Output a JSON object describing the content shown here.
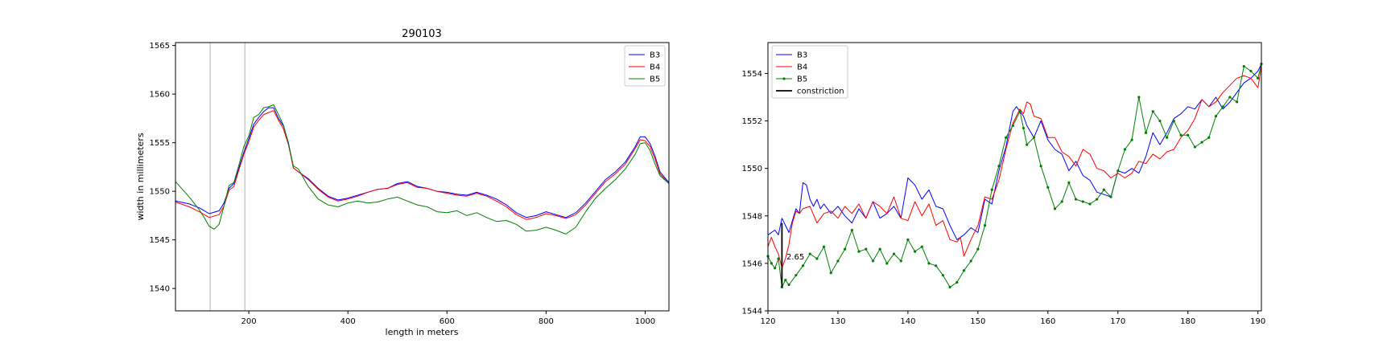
{
  "colors": {
    "B3": "#0000ff",
    "B4": "#ff0000",
    "B5": "#008000",
    "constriction": "#000000",
    "vline": "#b0b0b0"
  },
  "chart_data": [
    {
      "type": "line",
      "title": "290103",
      "xlabel": "length in meters",
      "ylabel": "width in millimeters",
      "xlim": [
        52,
        1048
      ],
      "ylim": [
        1537.7,
        1565.3
      ],
      "xticks": [
        "200",
        "400",
        "600",
        "800",
        "1000"
      ],
      "yticks": [
        "1540",
        "1545",
        "1550",
        "1555",
        "1560",
        "1565"
      ],
      "grid": false,
      "legend": "top-right",
      "vertical_lines_x": [
        122,
        192
      ],
      "series": [
        {
          "name": "B3",
          "x": [
            52,
            80,
            100,
            120,
            140,
            150,
            160,
            170,
            180,
            190,
            200,
            210,
            220,
            230,
            240,
            250,
            260,
            270,
            280,
            290,
            300,
            320,
            340,
            360,
            380,
            400,
            420,
            440,
            460,
            480,
            500,
            520,
            540,
            560,
            580,
            600,
            620,
            640,
            660,
            680,
            700,
            720,
            740,
            760,
            780,
            800,
            820,
            840,
            860,
            880,
            900,
            920,
            940,
            960,
            980,
            990,
            1000,
            1010,
            1020,
            1030,
            1048
          ],
          "y": [
            1549.0,
            1548.7,
            1548.3,
            1547.7,
            1548.0,
            1548.8,
            1550.3,
            1550.8,
            1552.4,
            1554.0,
            1555.4,
            1556.9,
            1557.6,
            1558.2,
            1558.6,
            1558.6,
            1557.5,
            1556.7,
            1555.0,
            1552.4,
            1552.0,
            1551.3,
            1550.3,
            1549.5,
            1549.1,
            1549.3,
            1549.6,
            1549.9,
            1550.2,
            1550.3,
            1550.8,
            1551.0,
            1550.5,
            1550.3,
            1550.0,
            1549.9,
            1549.7,
            1549.6,
            1549.9,
            1549.6,
            1549.2,
            1548.6,
            1547.8,
            1547.3,
            1547.5,
            1547.9,
            1547.6,
            1547.3,
            1547.8,
            1548.8,
            1550.0,
            1551.2,
            1552.0,
            1553.0,
            1554.6,
            1555.6,
            1555.6,
            1554.9,
            1553.6,
            1552.0,
            1550.9
          ]
        },
        {
          "name": "B4",
          "x": [
            52,
            80,
            100,
            120,
            140,
            150,
            160,
            170,
            180,
            190,
            200,
            210,
            220,
            230,
            240,
            250,
            260,
            270,
            280,
            290,
            300,
            320,
            340,
            360,
            380,
            400,
            420,
            440,
            460,
            480,
            500,
            520,
            540,
            560,
            580,
            600,
            620,
            640,
            660,
            680,
            700,
            720,
            740,
            760,
            780,
            800,
            820,
            840,
            860,
            880,
            900,
            920,
            940,
            960,
            980,
            990,
            1000,
            1010,
            1020,
            1030,
            1048
          ],
          "y": [
            1548.9,
            1548.4,
            1547.9,
            1547.3,
            1547.6,
            1548.5,
            1550.1,
            1550.5,
            1552.2,
            1553.8,
            1555.1,
            1556.6,
            1557.3,
            1557.9,
            1558.1,
            1558.3,
            1557.3,
            1556.4,
            1554.8,
            1552.4,
            1552.0,
            1551.2,
            1550.2,
            1549.4,
            1549.0,
            1549.2,
            1549.5,
            1549.9,
            1550.2,
            1550.3,
            1550.7,
            1550.9,
            1550.4,
            1550.3,
            1550.0,
            1549.8,
            1549.6,
            1549.5,
            1549.8,
            1549.5,
            1549.0,
            1548.4,
            1547.6,
            1547.1,
            1547.3,
            1547.7,
            1547.5,
            1547.2,
            1547.6,
            1548.6,
            1549.8,
            1551.0,
            1551.8,
            1552.8,
            1554.4,
            1555.3,
            1555.2,
            1554.6,
            1553.3,
            1551.8,
            1550.8
          ]
        },
        {
          "name": "B5",
          "x": [
            52,
            80,
            100,
            110,
            120,
            130,
            140,
            150,
            160,
            170,
            180,
            190,
            200,
            210,
            220,
            230,
            240,
            250,
            260,
            270,
            280,
            290,
            300,
            320,
            340,
            360,
            380,
            400,
            420,
            440,
            460,
            480,
            500,
            520,
            540,
            560,
            580,
            600,
            620,
            640,
            660,
            680,
            700,
            720,
            740,
            760,
            780,
            800,
            820,
            840,
            860,
            880,
            900,
            920,
            940,
            960,
            980,
            990,
            1000,
            1010,
            1020,
            1030,
            1048
          ],
          "y": [
            1551.0,
            1549.4,
            1548.1,
            1547.3,
            1546.4,
            1546.1,
            1546.6,
            1548.5,
            1550.6,
            1550.9,
            1552.7,
            1554.6,
            1555.7,
            1557.6,
            1557.9,
            1558.6,
            1558.7,
            1558.9,
            1557.9,
            1556.8,
            1554.9,
            1552.6,
            1552.3,
            1550.5,
            1549.2,
            1548.6,
            1548.4,
            1548.8,
            1549.0,
            1548.8,
            1548.9,
            1549.2,
            1549.4,
            1549.0,
            1548.6,
            1548.4,
            1547.9,
            1547.8,
            1548.0,
            1547.5,
            1547.8,
            1547.3,
            1546.9,
            1547.0,
            1546.6,
            1545.9,
            1546.0,
            1546.3,
            1546.0,
            1545.6,
            1546.3,
            1547.9,
            1549.3,
            1550.3,
            1551.2,
            1552.3,
            1553.8,
            1554.9,
            1555.0,
            1554.2,
            1552.8,
            1551.6,
            1550.8
          ]
        }
      ]
    },
    {
      "type": "line",
      "title": "",
      "xlabel": "",
      "ylabel": "",
      "xlim": [
        120,
        190.5
      ],
      "ylim": [
        1544,
        1555.3
      ],
      "xticks": [
        "120",
        "130",
        "140",
        "150",
        "160",
        "170",
        "180",
        "190"
      ],
      "yticks": [
        "1544",
        "1546",
        "1548",
        "1550",
        "1552",
        "1554"
      ],
      "grid": false,
      "legend": "top-left",
      "annotation": {
        "text": "2.65",
        "x": 122.3,
        "y": 1546.3
      },
      "constriction_line": {
        "x": 122.0,
        "y_from": 1545.0,
        "y_to": 1547.7
      },
      "series": [
        {
          "name": "B3",
          "x": [
            120,
            121,
            121.5,
            122,
            122.5,
            123,
            123.5,
            124,
            124.5,
            125,
            125.5,
            126,
            126.5,
            127,
            127.5,
            128,
            129,
            130,
            131,
            132,
            133,
            134,
            135,
            136,
            137,
            138,
            139,
            140,
            141,
            142,
            143,
            144,
            145,
            146,
            147,
            148,
            149,
            150,
            151,
            152,
            153,
            154,
            155,
            155.5,
            156,
            156.5,
            157,
            158,
            159,
            160,
            161,
            162,
            163,
            164,
            165,
            166,
            167,
            168,
            169,
            170,
            171,
            172,
            173,
            174,
            175,
            176,
            177,
            178,
            179,
            180,
            181,
            182,
            183,
            184,
            185,
            186,
            187,
            188,
            189,
            190,
            190.5
          ],
          "y": [
            1547.2,
            1547.4,
            1547.2,
            1547.9,
            1547.6,
            1547.3,
            1547.8,
            1548.3,
            1548.1,
            1549.4,
            1549.3,
            1548.7,
            1548.4,
            1548.7,
            1548.3,
            1548.5,
            1548.1,
            1548.4,
            1548.0,
            1547.7,
            1548.3,
            1547.9,
            1548.6,
            1547.9,
            1548.1,
            1548.4,
            1547.9,
            1549.6,
            1549.3,
            1548.7,
            1549.1,
            1548.4,
            1548.3,
            1547.6,
            1547.0,
            1547.2,
            1547.5,
            1547.3,
            1548.7,
            1548.5,
            1549.9,
            1550.9,
            1552.4,
            1552.6,
            1552.4,
            1552.2,
            1551.8,
            1551.3,
            1552.0,
            1551.2,
            1550.8,
            1550.6,
            1549.9,
            1550.3,
            1549.7,
            1549.5,
            1549.0,
            1548.9,
            1548.8,
            1549.9,
            1549.8,
            1550.0,
            1549.8,
            1550.5,
            1551.5,
            1551.0,
            1551.5,
            1552.1,
            1552.3,
            1552.6,
            1552.5,
            1552.9,
            1552.6,
            1553.0,
            1552.5,
            1552.8,
            1553.2,
            1553.6,
            1553.8,
            1554.1,
            1554.4
          ]
        },
        {
          "name": "B4",
          "x": [
            120,
            120.5,
            121,
            121.5,
            122,
            122.5,
            123,
            123.5,
            124,
            124.5,
            125,
            126,
            127,
            128,
            129,
            130,
            131,
            132,
            133,
            134,
            135,
            136,
            137,
            138,
            139,
            140,
            141,
            142,
            143,
            144,
            145,
            146,
            147,
            147.5,
            148,
            149,
            150,
            151,
            152,
            153,
            154,
            155,
            156,
            156.5,
            157,
            157.5,
            158,
            159,
            160,
            161,
            162,
            163,
            164,
            165,
            166,
            167,
            168,
            169,
            170,
            171,
            172,
            173,
            174,
            175,
            176,
            177,
            178,
            179,
            180,
            181,
            182,
            183,
            184,
            185,
            186,
            187,
            188,
            189,
            190,
            190.5
          ],
          "y": [
            1546.7,
            1547.1,
            1546.7,
            1546.4,
            1545.8,
            1546.2,
            1546.8,
            1547.7,
            1548.2,
            1548.1,
            1548.3,
            1548.4,
            1547.7,
            1548.1,
            1548.2,
            1547.9,
            1548.4,
            1548.1,
            1548.5,
            1547.9,
            1548.6,
            1548.4,
            1548.1,
            1548.8,
            1547.9,
            1547.8,
            1548.6,
            1548.0,
            1548.5,
            1547.6,
            1547.8,
            1547.0,
            1546.9,
            1547.1,
            1546.3,
            1547.0,
            1547.6,
            1548.8,
            1548.7,
            1549.5,
            1550.8,
            1551.9,
            1552.5,
            1552.3,
            1552.8,
            1552.7,
            1552.2,
            1552.1,
            1551.3,
            1551.3,
            1550.7,
            1550.5,
            1550.1,
            1550.8,
            1550.6,
            1550.0,
            1549.9,
            1549.6,
            1549.8,
            1549.6,
            1549.8,
            1550.3,
            1550.2,
            1550.6,
            1550.4,
            1550.7,
            1550.8,
            1551.3,
            1551.6,
            1552.1,
            1552.9,
            1552.6,
            1552.8,
            1553.2,
            1553.5,
            1553.8,
            1553.9,
            1553.8,
            1553.4,
            1554.3
          ]
        },
        {
          "name": "B5",
          "x": [
            120,
            120.5,
            121,
            121.5,
            122,
            122.5,
            123,
            124,
            125,
            126,
            127,
            128,
            129,
            130,
            131,
            132,
            133,
            134,
            135,
            136,
            137,
            138,
            139,
            140,
            141,
            142,
            143,
            144,
            145,
            146,
            147,
            148,
            149,
            150,
            151,
            152,
            153,
            154,
            155,
            156,
            156.5,
            157,
            158,
            159,
            160,
            161,
            162,
            163,
            164,
            165,
            166,
            167,
            168,
            169,
            170,
            171,
            172,
            173,
            174,
            175,
            176,
            177,
            178,
            179,
            180,
            181,
            182,
            183,
            184,
            185,
            186,
            187,
            188,
            189,
            190,
            190.5
          ],
          "y": [
            1546.3,
            1546.0,
            1545.8,
            1546.2,
            1545.0,
            1545.3,
            1545.1,
            1545.5,
            1545.9,
            1546.4,
            1546.2,
            1546.7,
            1545.6,
            1546.1,
            1546.6,
            1547.4,
            1546.5,
            1546.6,
            1546.1,
            1546.6,
            1546.0,
            1546.4,
            1546.1,
            1547.0,
            1546.5,
            1546.7,
            1546.0,
            1545.9,
            1545.5,
            1545.0,
            1545.2,
            1545.7,
            1546.1,
            1546.6,
            1547.6,
            1549.1,
            1550.1,
            1551.3,
            1551.8,
            1552.4,
            1551.7,
            1551.0,
            1551.3,
            1550.1,
            1549.2,
            1548.3,
            1548.6,
            1549.4,
            1548.7,
            1548.6,
            1548.5,
            1548.7,
            1549.1,
            1548.8,
            1549.9,
            1550.8,
            1551.2,
            1553.0,
            1551.5,
            1552.4,
            1552.0,
            1551.3,
            1552.0,
            1551.4,
            1551.4,
            1550.9,
            1551.1,
            1551.3,
            1552.2,
            1552.6,
            1553.0,
            1552.8,
            1554.3,
            1554.1,
            1553.8,
            1554.4
          ]
        }
      ]
    }
  ]
}
